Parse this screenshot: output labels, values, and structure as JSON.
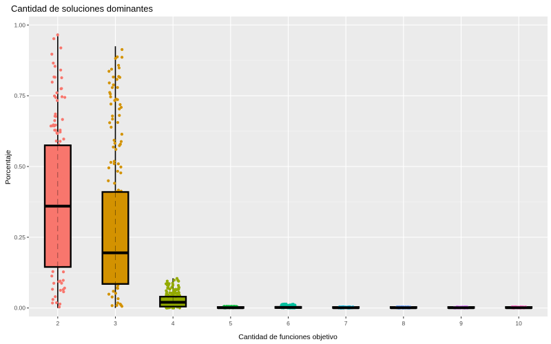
{
  "chart_data": {
    "type": "boxplot",
    "title": "Cantidad de soluciones dominantes",
    "xlabel": "Cantidad de funciones objetivo",
    "ylabel": "Porcentaje",
    "ylim": [
      -0.03,
      1.03
    ],
    "y_ticks": [
      0,
      0.25,
      0.5,
      0.75,
      1
    ],
    "y_tick_labels": [
      "0.00",
      "0.25",
      "0.50",
      "0.75",
      "1.00"
    ],
    "grid": true,
    "legend": "none",
    "categories": [
      "2",
      "3",
      "4",
      "5",
      "6",
      "7",
      "8",
      "9",
      "10"
    ],
    "series": [
      {
        "category": "2",
        "color": "#F8766D",
        "min": 0.0,
        "q1": 0.145,
        "median": 0.36,
        "q3": 0.575,
        "max": 0.97,
        "jitter_max": 0.97
      },
      {
        "category": "3",
        "color": "#D39200",
        "min": 0.0,
        "q1": 0.085,
        "median": 0.195,
        "q3": 0.41,
        "max": 0.925,
        "jitter_max": 0.925
      },
      {
        "category": "4",
        "color": "#93AA00",
        "min": 0.0,
        "q1": 0.005,
        "median": 0.02,
        "q3": 0.04,
        "max": 0.105,
        "jitter_max": 0.105
      },
      {
        "category": "5",
        "color": "#00BA38",
        "min": 0.0,
        "q1": 0.0,
        "median": 0.001,
        "q3": 0.003,
        "max": 0.006,
        "jitter_max": 0.006
      },
      {
        "category": "6",
        "color": "#00C19F",
        "min": 0.0,
        "q1": 0.0,
        "median": 0.002,
        "q3": 0.004,
        "max": 0.014,
        "jitter_max": 0.014
      },
      {
        "category": "7",
        "color": "#00B9E3",
        "min": 0.0,
        "q1": 0.0,
        "median": 0.001,
        "q3": 0.002,
        "max": 0.004,
        "jitter_max": 0.004
      },
      {
        "category": "8",
        "color": "#619CFF",
        "min": 0.0,
        "q1": 0.0,
        "median": 0.001,
        "q3": 0.002,
        "max": 0.004,
        "jitter_max": 0.004
      },
      {
        "category": "9",
        "color": "#DB72FB",
        "min": 0.0,
        "q1": 0.0,
        "median": 0.001,
        "q3": 0.002,
        "max": 0.004,
        "jitter_max": 0.004
      },
      {
        "category": "10",
        "color": "#FF61C3",
        "min": 0.0,
        "q1": 0.0,
        "median": 0.001,
        "q3": 0.002,
        "max": 0.004,
        "jitter_max": 0.004
      }
    ]
  }
}
